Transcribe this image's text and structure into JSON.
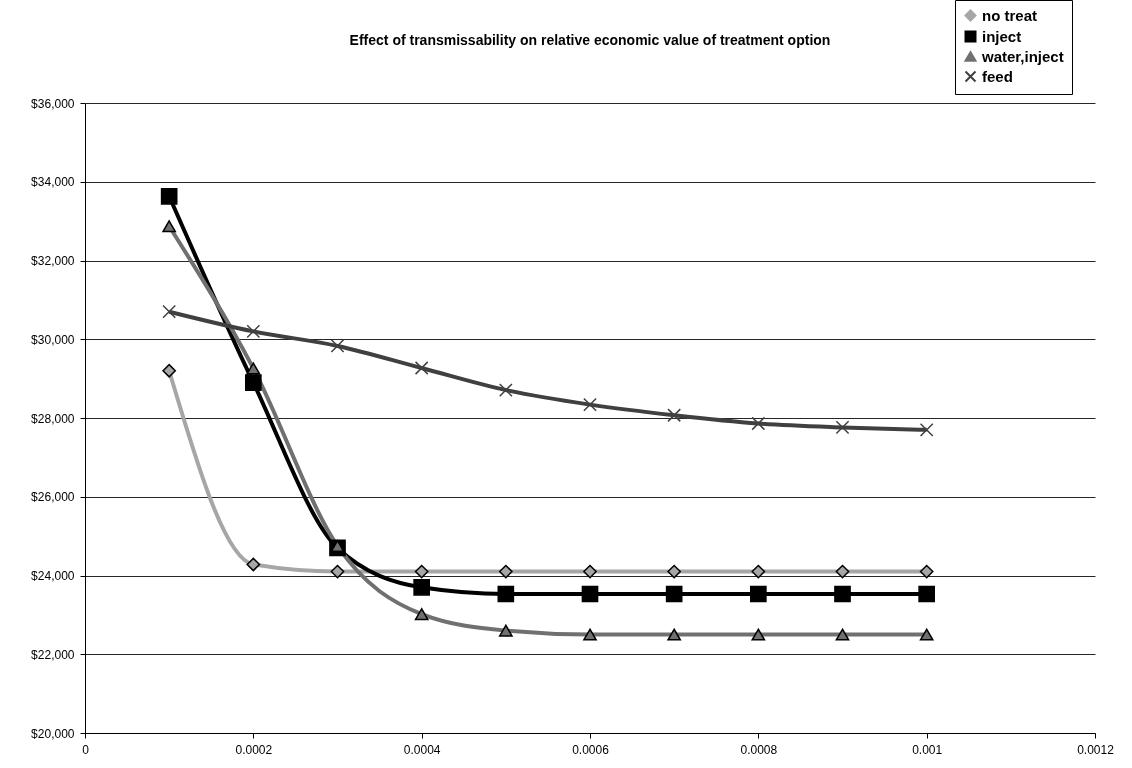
{
  "chart_data": {
    "type": "line",
    "title": "Effect of transmissability on relative economic value of treatment option",
    "x": [
      0.0001,
      0.0002,
      0.0003,
      0.0004,
      0.0005,
      0.0006,
      0.0007,
      0.0008,
      0.0009,
      0.001
    ],
    "series": [
      {
        "name": "no treat",
        "color": "#a6a6a6",
        "marker": "diamond",
        "values": [
          29200,
          24280,
          24100,
          24100,
          24100,
          24100,
          24100,
          24100,
          24100,
          24100
        ]
      },
      {
        "name": "inject",
        "color": "#000000",
        "marker": "square",
        "values": [
          33630,
          28900,
          24700,
          23700,
          23530,
          23530,
          23530,
          23530,
          23530,
          23530
        ]
      },
      {
        "name": "water,inject",
        "color": "#707070",
        "marker": "triangle",
        "values": [
          32870,
          29260,
          24750,
          23020,
          22600,
          22500,
          22500,
          22500,
          22500,
          22500
        ]
      },
      {
        "name": "feed",
        "color": "#404040",
        "marker": "cross",
        "values": [
          30700,
          30200,
          29830,
          29270,
          28710,
          28340,
          28070,
          27860,
          27760,
          27700
        ]
      }
    ],
    "xlim": [
      0,
      0.0012
    ],
    "xticks": [
      0,
      0.0002,
      0.0004,
      0.0006,
      0.0008,
      0.001,
      0.0012
    ],
    "ylim": [
      20000,
      36000
    ],
    "yticks": [
      {
        "value": 20000,
        "label": "$20,000"
      },
      {
        "value": 22000,
        "label": "$22,000"
      },
      {
        "value": 24000,
        "label": "$24,000"
      },
      {
        "value": 26000,
        "label": "$26,000"
      },
      {
        "value": 28000,
        "label": "$28,000"
      },
      {
        "value": 30000,
        "label": "$30,000"
      },
      {
        "value": 32000,
        "label": "$32,000"
      },
      {
        "value": 34000,
        "label": "$34,000"
      },
      {
        "value": 36000,
        "label": "$36,000"
      }
    ],
    "grid": "y",
    "legend": "top right"
  }
}
